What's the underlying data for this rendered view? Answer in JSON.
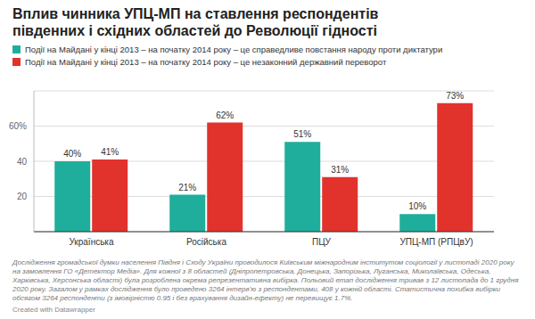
{
  "chart_data": {
    "type": "bar",
    "title": "Вплив чинника УПЦ-МП на ставлення респондентів південних і східних областей до Революції гідності",
    "categories": [
      "Українська",
      "Російська",
      "ПЦУ",
      "УПЦ-МП (РПЦвУ)"
    ],
    "series": [
      {
        "name": "Події на Майдані у кінці 2013 – на початку 2014 року – це справедливе повстання народу проти диктатури",
        "color": "#1fae9b",
        "values": [
          40,
          21,
          51,
          10
        ],
        "value_labels": [
          "40%",
          "21%",
          "51%",
          "10%"
        ]
      },
      {
        "name": "Події на Майдані у кінці 2013 – на початку 2014 року – це незаконний державний переворот",
        "color": "#e2322c",
        "values": [
          41,
          62,
          31,
          73
        ],
        "value_labels": [
          "41%",
          "62%",
          "31%",
          "73%"
        ]
      }
    ],
    "ylim": [
      0,
      80
    ],
    "yticks": [
      20,
      40,
      {
        "value": 60,
        "label": "60%"
      }
    ],
    "grid": true,
    "legend": "top",
    "data_labels": true,
    "annotations": [
      "Дослідження громадської думки населення Півдня і Сходу України проводилося Київським міжнародним інститутом соціології у листопаді 2020 року на замовлення ГО «Детектор Медіа». Для кожної з 8 областей (Дніпропетровська, Донецька, Запорізька, Луганська, Миколаївська, Одеська, Харківська, Херсонська області) була розроблена окрема репрезентативна вибірка. Польовий етап дослідження тривав з 12 листопада до 1 грудня 2020 року. Загалом у рамках дослідження було проведено 3264 інтерв'ю з респондентами, 408 у кожній області. Статистична похибка вибірки обсягом 3264 респонденти (з імовірністю 0.95 і без врахування дизайн-ефекту) не перевищує 1.7%.",
      "Created with Datawrapper"
    ]
  }
}
